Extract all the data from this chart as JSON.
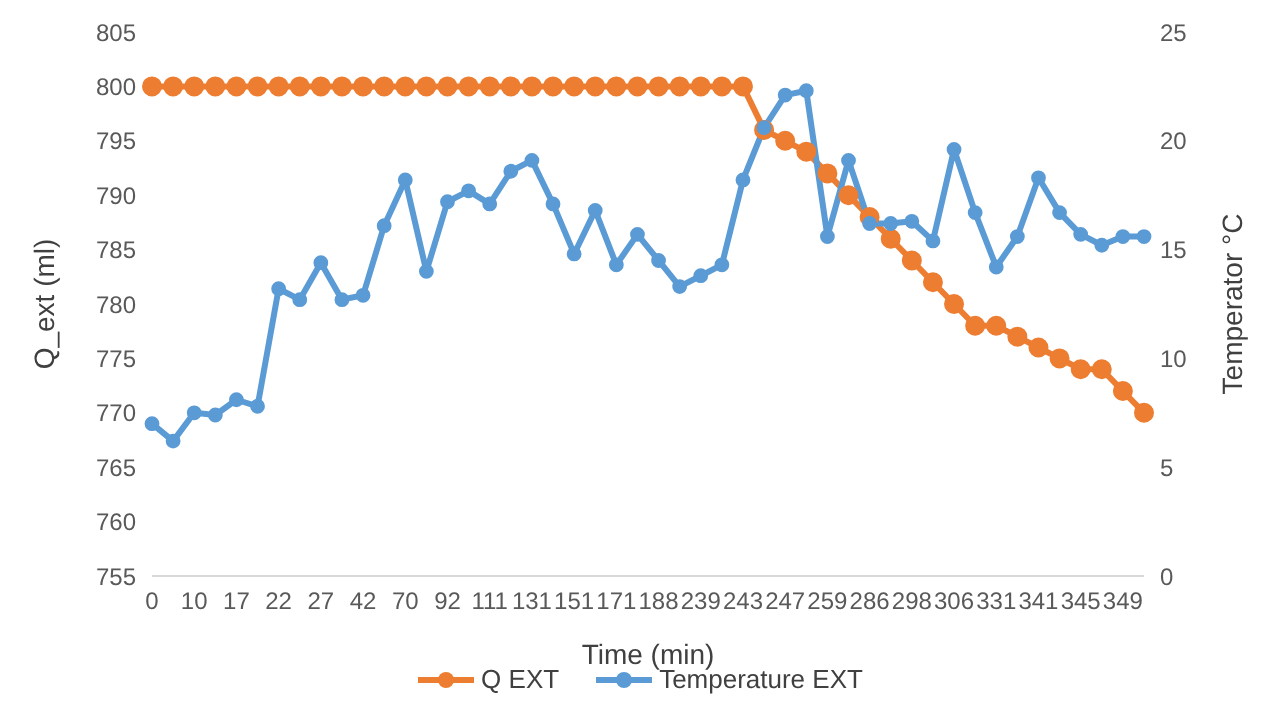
{
  "chart_data": {
    "type": "line",
    "xlabel": "Time (min)",
    "ylabel": "Q_ext (ml)",
    "y2label": "Temperator °C",
    "categories": [
      "0",
      null,
      "10",
      null,
      "17",
      null,
      "22",
      null,
      "27",
      null,
      "42",
      null,
      "70",
      null,
      "92",
      null,
      "111",
      null,
      "131",
      null,
      "151",
      null,
      "171",
      null,
      "188",
      null,
      "239",
      null,
      "243",
      null,
      "247",
      null,
      "259",
      null,
      "286",
      null,
      "298",
      null,
      "306",
      null,
      "331",
      null,
      "341",
      null,
      "345",
      null,
      "349",
      null
    ],
    "series": [
      {
        "name": "Q EXT",
        "color": "#ed7d31",
        "values": [
          800,
          800,
          800,
          800,
          800,
          800,
          800,
          800,
          800,
          800,
          800,
          800,
          800,
          800,
          800,
          800,
          800,
          800,
          800,
          800,
          800,
          800,
          800,
          800,
          800,
          800,
          800,
          800,
          800,
          796,
          795,
          794,
          792,
          790,
          788,
          786,
          784,
          782,
          780,
          778,
          778,
          777,
          776,
          775,
          774,
          774,
          772,
          770
        ]
      },
      {
        "name": "Temperature EXT",
        "color": "#5b9bd5",
        "axis": "y2",
        "values": [
          7.0,
          6.2,
          7.5,
          7.4,
          8.1,
          7.8,
          13.2,
          12.7,
          14.4,
          12.7,
          12.9,
          16.1,
          18.2,
          14.0,
          17.2,
          17.7,
          17.1,
          18.6,
          19.1,
          17.1,
          14.8,
          16.8,
          14.3,
          15.7,
          14.5,
          13.3,
          13.8,
          14.3,
          18.2,
          20.6,
          22.1,
          22.3,
          15.6,
          19.1,
          16.2,
          16.2,
          16.3,
          15.4,
          19.6,
          16.7,
          14.2,
          15.6,
          18.3,
          16.7,
          15.7,
          15.2,
          15.6,
          15.6
        ]
      }
    ],
    "ylim": [
      755,
      805
    ],
    "yticks": [
      755,
      760,
      765,
      770,
      775,
      780,
      785,
      790,
      795,
      800,
      805
    ],
    "y2lim": [
      0,
      25
    ],
    "y2ticks": [
      0,
      5,
      10,
      15,
      20,
      25
    ],
    "grid": false,
    "legend": "bottom",
    "marker": "circle",
    "line_style": "solid"
  }
}
